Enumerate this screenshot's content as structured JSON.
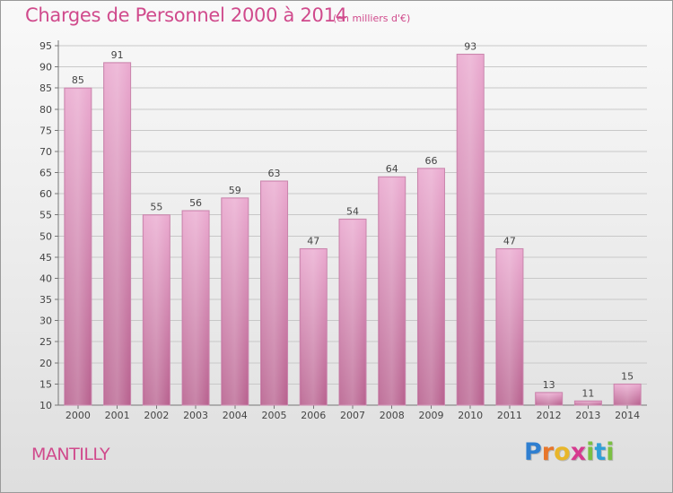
{
  "header": {
    "title": "Charges de Personnel 2000 à 2014",
    "subtitle": "(en milliers d'€)"
  },
  "commune": "MANTILLY",
  "logo": {
    "letters": [
      "P",
      "r",
      "o",
      "x",
      "i",
      "t",
      "i"
    ],
    "colors": [
      "#2f7fd0",
      "#e8762a",
      "#e8b62a",
      "#d63a8f",
      "#7bc043",
      "#2f9fd8",
      "#7bc043"
    ]
  },
  "chart_data": {
    "type": "bar",
    "categories": [
      "2000",
      "2001",
      "2002",
      "2003",
      "2004",
      "2005",
      "2006",
      "2007",
      "2008",
      "2009",
      "2010",
      "2011",
      "2012",
      "2013",
      "2014"
    ],
    "values": [
      85,
      91,
      55,
      56,
      59,
      63,
      47,
      54,
      64,
      66,
      93,
      47,
      13,
      11,
      15
    ],
    "ylim": [
      10,
      95
    ],
    "yticks": [
      10,
      15,
      20,
      25,
      30,
      35,
      40,
      45,
      50,
      55,
      60,
      65,
      70,
      75,
      80,
      85,
      90,
      95
    ],
    "grid": true,
    "bar_color": "#d98cb8",
    "title": "Charges de Personnel 2000 à 2014"
  }
}
